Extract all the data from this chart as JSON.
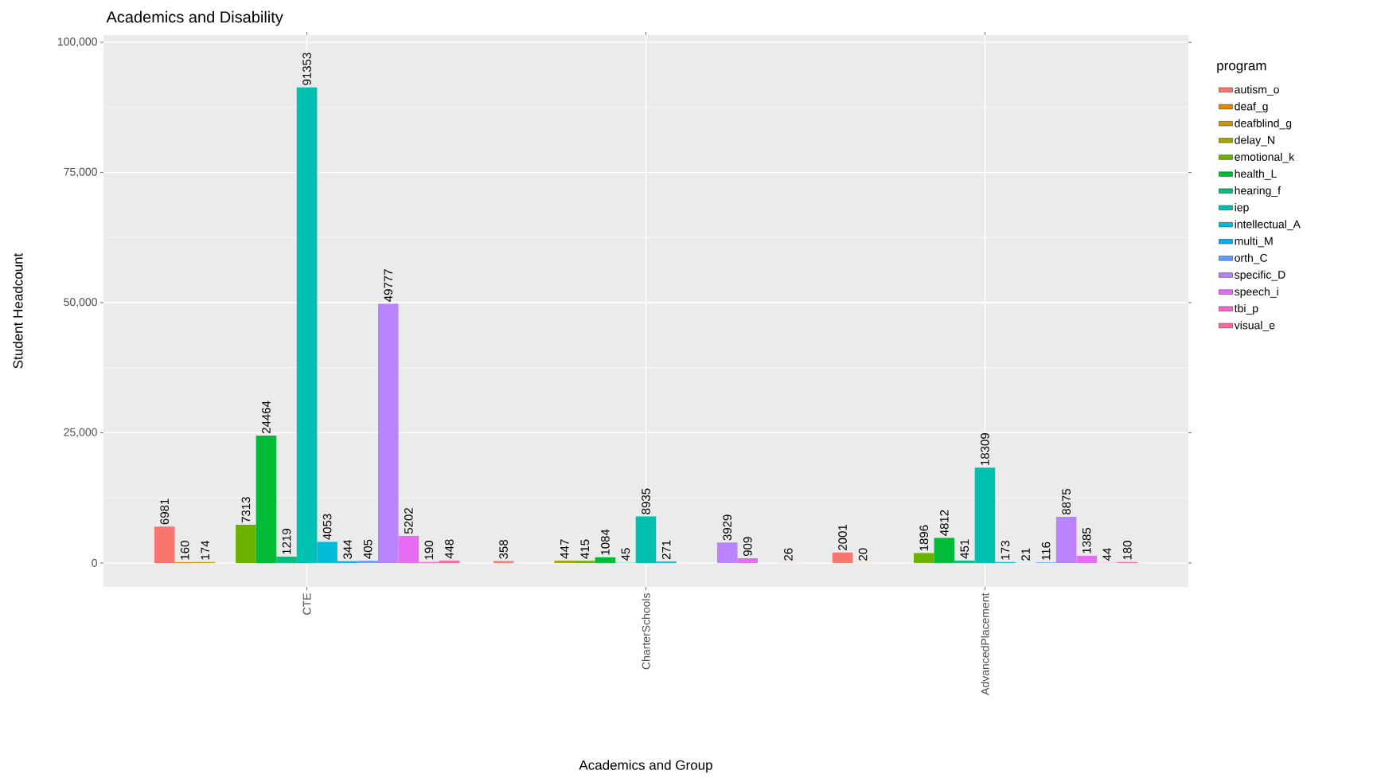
{
  "chart_data": {
    "type": "bar",
    "title": "Academics and Disability",
    "xlabel": "Academics and Group",
    "ylabel": "Student Headcount",
    "legend_title": "program",
    "legend": "right",
    "grid": true,
    "data_labels": true,
    "categories": [
      "CTE",
      "CharterSchools",
      "AdvancedPlacement"
    ],
    "ylim": [
      -4600,
      101400
    ],
    "yticks": [
      0,
      {
        "value": 25000,
        "label": "25,000"
      },
      {
        "value": 50000,
        "label": "50,000"
      },
      {
        "value": 75000,
        "label": "75,000"
      },
      {
        "value": 100000,
        "label": "100,000"
      }
    ],
    "series": [
      {
        "name": "autism_o",
        "color": "#F8766D",
        "values": [
          6981,
          358,
          2001
        ]
      },
      {
        "name": "deaf_g",
        "color": "#E58700",
        "values": [
          160,
          null,
          20
        ]
      },
      {
        "name": "deafblind_g",
        "color": "#C99800",
        "values": [
          174,
          null,
          null
        ]
      },
      {
        "name": "delay_N",
        "color": "#A3A500",
        "values": [
          null,
          447,
          null
        ]
      },
      {
        "name": "emotional_k",
        "color": "#6BB100",
        "values": [
          7313,
          415,
          1896
        ]
      },
      {
        "name": "health_L",
        "color": "#00BA38",
        "values": [
          24464,
          1084,
          4812
        ]
      },
      {
        "name": "hearing_f",
        "color": "#00BF7D",
        "values": [
          1219,
          45,
          451
        ]
      },
      {
        "name": "iep",
        "color": "#00C0AF",
        "values": [
          91353,
          8935,
          18309
        ]
      },
      {
        "name": "intellectual_A",
        "color": "#00BCD8",
        "values": [
          4053,
          271,
          173
        ]
      },
      {
        "name": "multi_M",
        "color": "#00B0F6",
        "values": [
          344,
          null,
          21
        ]
      },
      {
        "name": "orth_C",
        "color": "#619CFF",
        "values": [
          405,
          null,
          116
        ]
      },
      {
        "name": "specific_D",
        "color": "#B983FF",
        "values": [
          49777,
          3929,
          8875
        ]
      },
      {
        "name": "speech_i",
        "color": "#E76BF3",
        "values": [
          5202,
          909,
          1385
        ]
      },
      {
        "name": "tbi_p",
        "color": "#FD61D1",
        "values": [
          190,
          null,
          44
        ]
      },
      {
        "name": "visual_e",
        "color": "#FF67A4",
        "values": [
          448,
          26,
          180
        ]
      }
    ]
  }
}
